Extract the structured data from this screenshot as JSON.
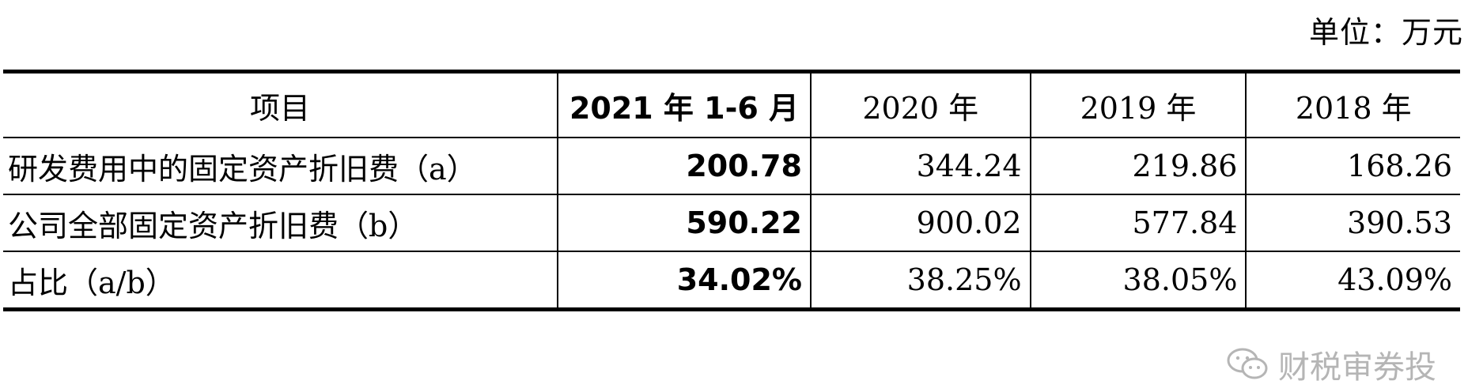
{
  "unit_note": "单位：万元",
  "table": {
    "headers": [
      "项目",
      "2021 年 1-6 月",
      "2020 年",
      "2019 年",
      "2018 年"
    ],
    "rows": [
      [
        "研发费用中的固定资产折旧费（a）",
        "200.78",
        "344.24",
        "219.86",
        "168.26"
      ],
      [
        "公司全部固定资产折旧费（b）",
        "590.22",
        "900.02",
        "577.84",
        "390.53"
      ],
      [
        "占比（a/b）",
        "34.02%",
        "38.25%",
        "38.05%",
        "43.09%"
      ]
    ]
  },
  "watermark": {
    "text": "财税审券投",
    "icon": "wechat-icon"
  }
}
